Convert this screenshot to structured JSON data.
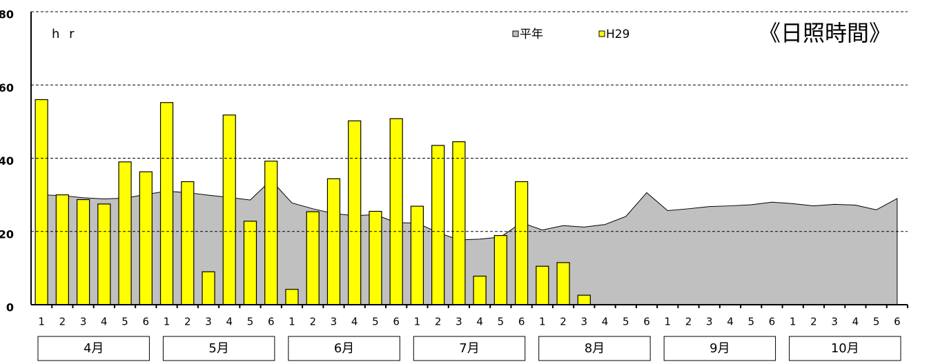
{
  "chart_data": {
    "type": "bar",
    "title": "《日照時間》",
    "y_label": "h r",
    "categories": [
      "1",
      "2",
      "3",
      "4",
      "5",
      "6",
      "1",
      "2",
      "3",
      "4",
      "5",
      "6",
      "1",
      "2",
      "3",
      "4",
      "5",
      "6",
      "1",
      "2",
      "3",
      "4",
      "5",
      "6",
      "1",
      "2",
      "3",
      "4",
      "5",
      "6",
      "1",
      "2",
      "3",
      "4",
      "5",
      "6",
      "1",
      "2",
      "3",
      "4",
      "5",
      "6"
    ],
    "groups": [
      "4月",
      "5月",
      "6月",
      "7月",
      "8月",
      "9月",
      "10月"
    ],
    "series": [
      {
        "name": "平年",
        "type": "area",
        "color": "#c0c0c0",
        "values": [
          30,
          29.8,
          29.2,
          28.9,
          29.1,
          30.1,
          31,
          30.6,
          29.9,
          29.3,
          28.6,
          34,
          27.8,
          26.2,
          24.9,
          24.3,
          24.6,
          22.4,
          22.3,
          19.7,
          17.7,
          17.9,
          18.5,
          22.4,
          20.4,
          21.6,
          21.2,
          21.9,
          24.1,
          30.6,
          25.7,
          26.2,
          26.8,
          27,
          27.3,
          28,
          27.6,
          27,
          27.4,
          27.2,
          25.9,
          29
        ]
      },
      {
        "name": "H29",
        "type": "bar",
        "color": "#ffff00",
        "values": [
          56,
          30,
          28.7,
          27.5,
          39,
          36.3,
          55.2,
          33.6,
          9,
          51.8,
          22.8,
          39.2,
          4.2,
          25.4,
          34.4,
          50.2,
          25.5,
          50.8,
          26.9,
          43.5,
          44.5,
          7.8,
          18.9,
          33.6,
          10.5,
          11.5,
          2.6,
          null,
          null,
          null,
          null,
          null,
          null,
          null,
          null,
          null,
          null,
          null,
          null,
          null,
          null,
          null
        ]
      }
    ],
    "ylim": [
      0,
      80
    ],
    "yticks": [
      0,
      20,
      40,
      60,
      80
    ],
    "grid": true
  }
}
